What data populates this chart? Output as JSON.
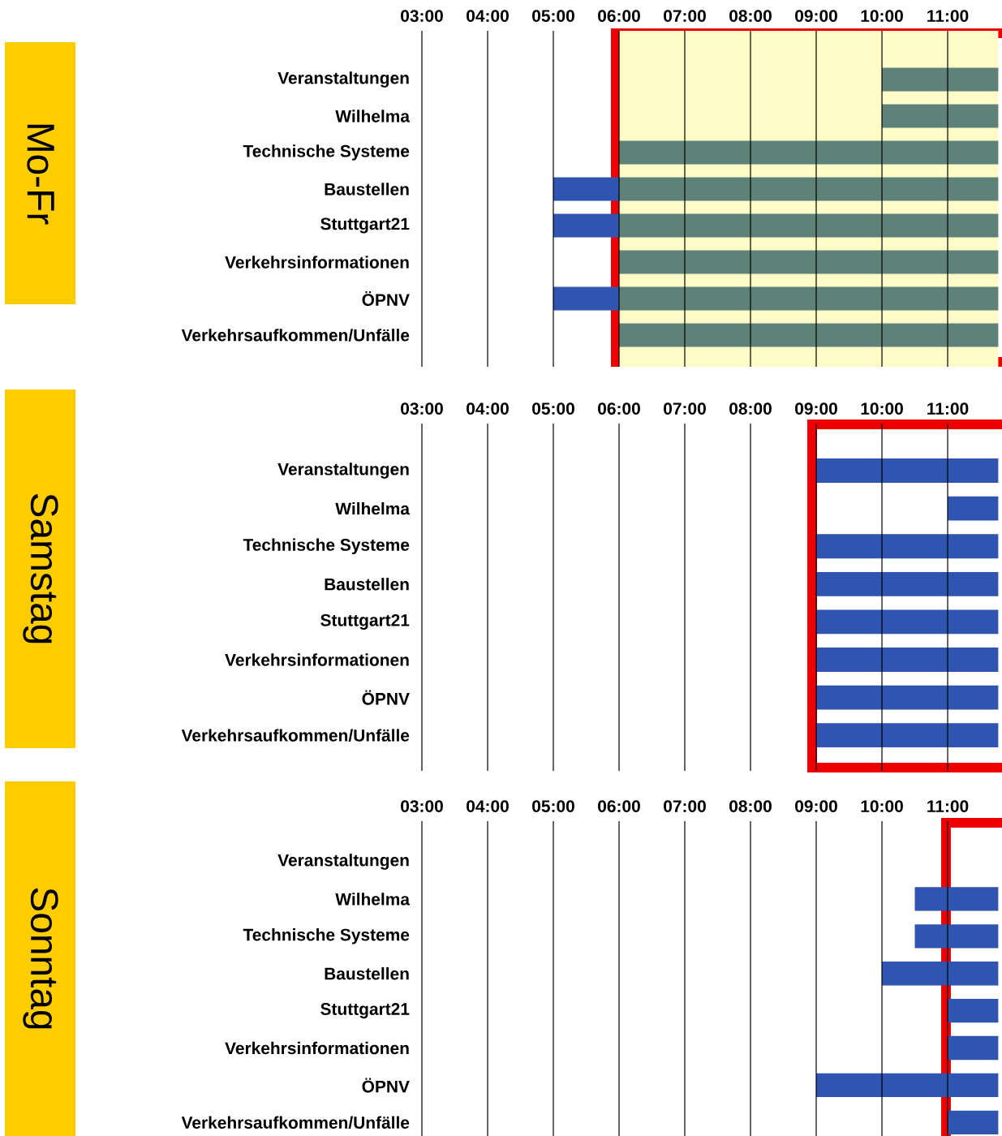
{
  "chart_data": [
    {
      "type": "bar",
      "orientation": "horizontal",
      "title": "Mo-Fr",
      "categories": [
        "Veranstaltungen",
        "Wilhelma",
        "Technische Systeme",
        "Baustellen",
        "Stuttgart21",
        "Verkehrsinformationen",
        "ÖPNV",
        "Verkehrsaufkommen/Unfälle"
      ],
      "xlim": [
        3,
        11.77
      ],
      "xticks": [
        {
          "value": 3,
          "label": "03:00"
        },
        {
          "value": 4,
          "label": "04:00"
        },
        {
          "value": 5,
          "label": "05:00"
        },
        {
          "value": 6,
          "label": "06:00"
        },
        {
          "value": 7,
          "label": "07:00"
        },
        {
          "value": 8,
          "label": "08:00"
        },
        {
          "value": 9,
          "label": "09:00"
        },
        {
          "value": 10,
          "label": "10:00"
        },
        {
          "value": 11,
          "label": "11:00"
        }
      ],
      "grid": "x",
      "bands": [
        {
          "axis": "x",
          "from": 6,
          "to": 11.77,
          "color": "#fffbc6"
        }
      ],
      "series": [
        {
          "color": "#2f55b0",
          "base": [
            null,
            null,
            null,
            5,
            5,
            null,
            5,
            null
          ],
          "values": [
            null,
            null,
            null,
            1,
            1,
            null,
            1,
            null
          ]
        },
        {
          "color": "#5f8278",
          "base": [
            10,
            10,
            6,
            6,
            6,
            6,
            6,
            6
          ],
          "values": [
            1.77,
            1.77,
            5.77,
            5.77,
            5.77,
            5.77,
            5.77,
            5.77
          ]
        }
      ]
    },
    {
      "type": "bar",
      "orientation": "horizontal",
      "title": "Samstag",
      "categories": [
        "Veranstaltungen",
        "Wilhelma",
        "Technische Systeme",
        "Baustellen",
        "Stuttgart21",
        "Verkehrsinformationen",
        "ÖPNV",
        "Verkehrsaufkommen/Unfälle"
      ],
      "xlim": [
        3,
        11.77
      ],
      "xticks": [
        {
          "value": 3,
          "label": "03:00"
        },
        {
          "value": 4,
          "label": "04:00"
        },
        {
          "value": 5,
          "label": "05:00"
        },
        {
          "value": 6,
          "label": "06:00"
        },
        {
          "value": 7,
          "label": "07:00"
        },
        {
          "value": 8,
          "label": "08:00"
        },
        {
          "value": 9,
          "label": "09:00"
        },
        {
          "value": 10,
          "label": "10:00"
        },
        {
          "value": 11,
          "label": "11:00"
        }
      ],
      "grid": "x",
      "series": [
        {
          "color": "#2f55b0",
          "base": [
            9,
            11,
            9,
            9,
            9,
            9,
            9,
            9
          ],
          "values": [
            2.77,
            0.77,
            2.77,
            2.77,
            2.77,
            2.77,
            2.77,
            2.77
          ]
        }
      ]
    },
    {
      "type": "bar",
      "orientation": "horizontal",
      "title": "Sonntag",
      "categories": [
        "Veranstaltungen",
        "Wilhelma",
        "Technische Systeme",
        "Baustellen",
        "Stuttgart21",
        "Verkehrsinformationen",
        "ÖPNV",
        "Verkehrsaufkommen/Unfälle"
      ],
      "xlim": [
        3,
        11.77
      ],
      "xticks": [
        {
          "value": 3,
          "label": "03:00"
        },
        {
          "value": 4,
          "label": "04:00"
        },
        {
          "value": 5,
          "label": "05:00"
        },
        {
          "value": 6,
          "label": "06:00"
        },
        {
          "value": 7,
          "label": "07:00"
        },
        {
          "value": 8,
          "label": "08:00"
        },
        {
          "value": 9,
          "label": "09:00"
        },
        {
          "value": 10,
          "label": "10:00"
        },
        {
          "value": 11,
          "label": "11:00"
        }
      ],
      "grid": "x",
      "series": [
        {
          "color": "#2f55b0",
          "base": [
            null,
            10.5,
            10.5,
            10,
            11,
            11,
            9,
            11
          ],
          "values": [
            null,
            1.27,
            1.27,
            1.77,
            0.77,
            0.77,
            2.77,
            0.77
          ]
        }
      ]
    }
  ]
}
